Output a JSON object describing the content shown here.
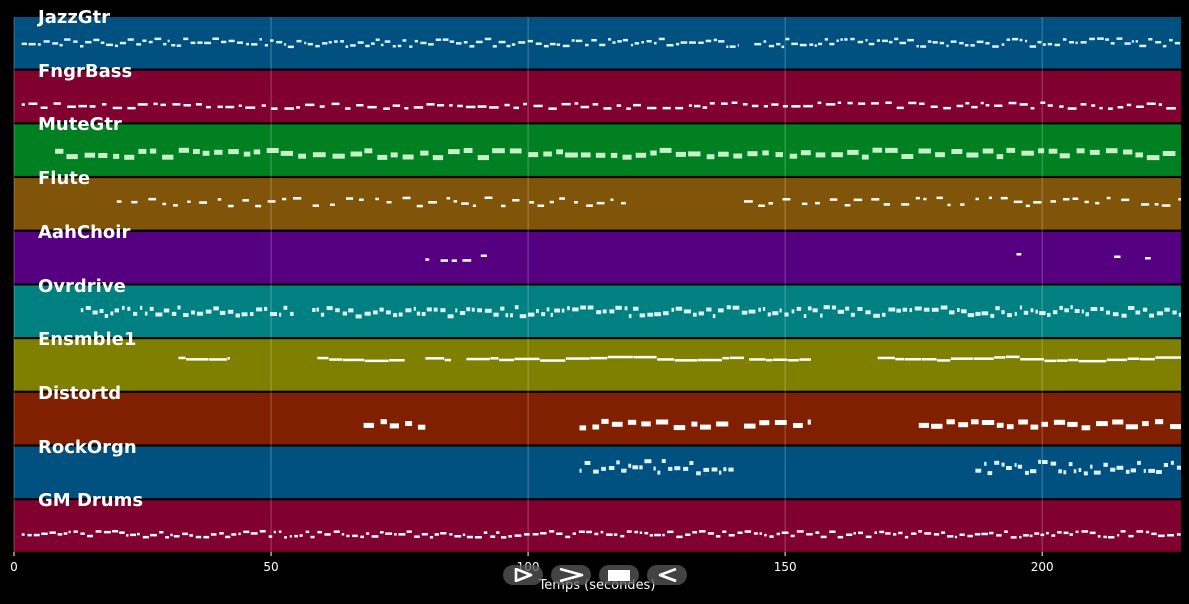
{
  "chart_data": {
    "type": "piano-roll",
    "xlabel": "Temps (secondes)",
    "xlim": [
      0,
      227
    ],
    "xticks": [
      0,
      50,
      100,
      150,
      200
    ],
    "grid": true,
    "tracks": [
      {
        "name": "JazzGtr",
        "color": "#005080",
        "segments": [
          [
            1.5,
            141
          ],
          [
            144,
            227
          ]
        ],
        "pitch_range": [
          0.42,
          0.58
        ],
        "density": "dense",
        "note_size": "small"
      },
      {
        "name": "FngrBass",
        "color": "#800030",
        "segments": [
          [
            1.5,
            227
          ]
        ],
        "pitch_range": [
          0.62,
          0.74
        ],
        "density": "medium",
        "note_size": "small"
      },
      {
        "name": "MuteGtr",
        "color": "#008020",
        "segments": [
          [
            8,
            227
          ]
        ],
        "pitch_range": [
          0.5,
          0.65
        ],
        "density": "medium",
        "note_size": "large"
      },
      {
        "name": "Flute",
        "color": "#80550a",
        "segments": [
          [
            20,
            119
          ],
          [
            142,
            227
          ]
        ],
        "pitch_range": [
          0.38,
          0.55
        ],
        "density": "sparse",
        "note_size": "small"
      },
      {
        "name": "AahChoir",
        "color": "#550080",
        "segments": [
          [
            80,
            92
          ],
          [
            195,
            197
          ],
          [
            214,
            216
          ],
          [
            220,
            222
          ]
        ],
        "pitch_range": [
          0.42,
          0.56
        ],
        "density": "sparse",
        "note_size": "small"
      },
      {
        "name": "Ovrdrive",
        "color": "#008080",
        "segments": [
          [
            13,
            55
          ],
          [
            58,
            227
          ]
        ],
        "pitch_range": [
          0.42,
          0.6
        ],
        "density": "dense",
        "note_size": "medium"
      },
      {
        "name": "Ensmble1",
        "color": "#7f7f00",
        "segments": [
          [
            32,
            42
          ],
          [
            59,
            76
          ],
          [
            80,
            85
          ],
          [
            88,
            142
          ],
          [
            143,
            155
          ],
          [
            168,
            227
          ]
        ],
        "pitch_range": [
          0.28,
          0.5
        ],
        "density": "line",
        "note_size": "small"
      },
      {
        "name": "Distortd",
        "color": "#802000",
        "segments": [
          [
            68,
            80
          ],
          [
            110,
            140
          ],
          [
            142,
            155
          ],
          [
            176,
            227
          ]
        ],
        "pitch_range": [
          0.55,
          0.68
        ],
        "density": "medium",
        "note_size": "large"
      },
      {
        "name": "RockOrgn",
        "color": "#005080",
        "segments": [
          [
            110,
            140
          ],
          [
            187,
            227
          ]
        ],
        "pitch_range": [
          0.28,
          0.52
        ],
        "density": "dense",
        "note_size": "medium"
      },
      {
        "name": "GM Drums",
        "color": "#800030",
        "segments": [
          [
            1.5,
            227
          ]
        ],
        "pitch_range": [
          0.6,
          0.72
        ],
        "density": "dense",
        "note_size": "small"
      }
    ]
  },
  "controls": [
    {
      "name": "play-button",
      "icon": "play-icon"
    },
    {
      "name": "fast-forward-button",
      "icon": "chevron-right-icon"
    },
    {
      "name": "stop-button",
      "icon": "stop-icon"
    },
    {
      "name": "rewind-button",
      "icon": "back-icon"
    }
  ]
}
